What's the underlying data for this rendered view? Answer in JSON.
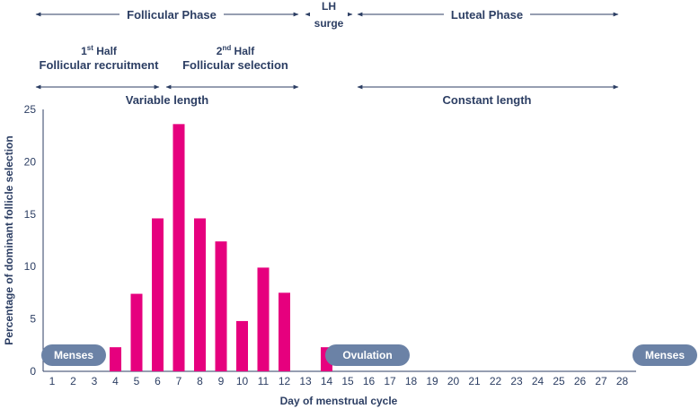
{
  "chart_data": {
    "type": "bar",
    "categories": [
      "1",
      "2",
      "3",
      "4",
      "5",
      "6",
      "7",
      "8",
      "9",
      "10",
      "11",
      "12",
      "13",
      "14",
      "15",
      "16",
      "17",
      "18",
      "19",
      "20",
      "21",
      "22",
      "23",
      "24",
      "25",
      "26",
      "27",
      "28"
    ],
    "values": [
      0,
      0,
      0,
      2.3,
      7.4,
      14.6,
      23.6,
      14.6,
      12.4,
      4.8,
      9.9,
      7.5,
      0,
      2.3,
      0,
      0,
      0,
      0,
      0,
      0,
      0,
      0,
      0,
      0,
      0,
      0,
      0,
      0
    ],
    "xlabel": "Day of menstrual cycle",
    "ylabel": "Percentage of dominant  follicle selection",
    "ylim": [
      0,
      25
    ],
    "yticks": [
      "0",
      "5",
      "10",
      "15",
      "20",
      "25"
    ],
    "bar_color": "#e6007e",
    "grid": false
  },
  "phases": {
    "follicular": "Follicular Phase",
    "lh_line1": "LH",
    "lh_line2": "surge",
    "luteal": "Luteal Phase"
  },
  "halves": {
    "first_title_num": "1",
    "first_title_sup": "st",
    "first_title_rest": " Half",
    "first_subtitle": "Follicular recruitment",
    "second_title_num": "2",
    "second_title_sup": "nd",
    "second_title_rest": " Half",
    "second_subtitle": "Follicular selection"
  },
  "lengths": {
    "variable": "Variable length",
    "constant": "Constant length"
  },
  "pills": {
    "menses_start": "Menses",
    "ovulation": "Ovulation",
    "menses_end": "Menses",
    "color": "#6b82a6"
  }
}
